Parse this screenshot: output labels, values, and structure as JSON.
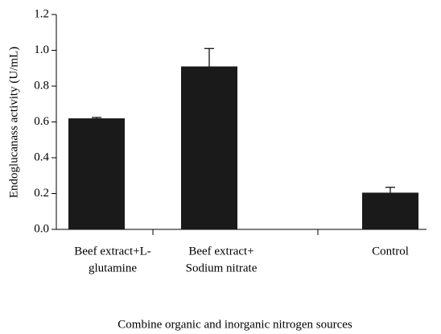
{
  "chart_data": {
    "type": "bar",
    "categories": [
      [
        "Beef extract+L-",
        "glutamine"
      ],
      [
        "Beef extract+",
        "Sodium nitrate"
      ],
      [
        "Control"
      ]
    ],
    "values": [
      0.62,
      0.91,
      0.205
    ],
    "errors": [
      0.005,
      0.1,
      0.03
    ],
    "color": "#1a1a1a",
    "ylabel": "Endoglucanass activity (U/mL)",
    "xlabel": "Combine organic and inorganic nitrogen sources",
    "ylim": [
      0,
      1.2
    ],
    "yticks": [
      {
        "value": 0,
        "label": "0.0"
      },
      0.2,
      0.4,
      0.6,
      0.8,
      {
        "value": 1,
        "label": "1.0"
      },
      1.2
    ],
    "grid": false
  }
}
